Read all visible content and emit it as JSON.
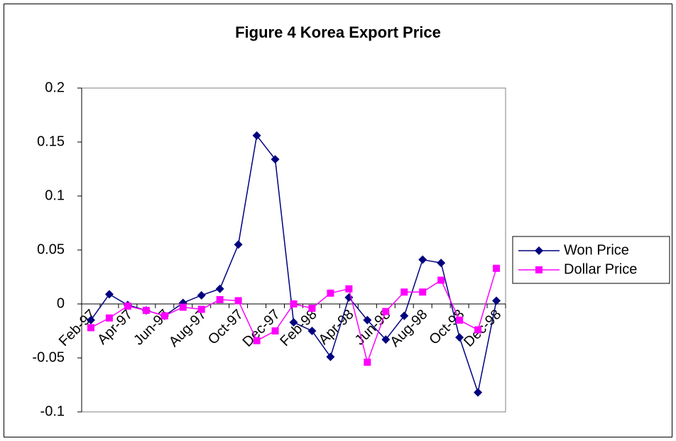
{
  "chart_data": {
    "type": "line",
    "title": "Figure 4 Korea Export Price",
    "categories": [
      "Feb-97",
      null,
      "Apr-97",
      null,
      "Jun-97",
      null,
      "Aug-97",
      null,
      "Oct-97",
      null,
      "Dec-97",
      null,
      "Feb-98",
      null,
      "Apr-98",
      null,
      "Jun-98",
      null,
      "Aug-98",
      null,
      "Oct-98",
      null,
      "Dec-98"
    ],
    "series": [
      {
        "name": "Won Price",
        "color": "#000080",
        "marker": "diamond",
        "values": [
          -0.015,
          0.009,
          -0.001,
          -0.006,
          -0.011,
          0.001,
          0.008,
          0.014,
          0.055,
          0.156,
          0.134,
          -0.017,
          -0.025,
          -0.049,
          0.006,
          -0.015,
          -0.033,
          -0.011,
          0.041,
          0.038,
          -0.031,
          -0.082,
          0.003
        ]
      },
      {
        "name": "Dollar Price",
        "color": "#ff00ff",
        "marker": "square",
        "values": [
          -0.022,
          -0.013,
          -0.002,
          -0.006,
          -0.011,
          -0.003,
          -0.005,
          0.004,
          0.003,
          -0.034,
          -0.025,
          0.0,
          -0.004,
          0.01,
          0.014,
          -0.054,
          -0.007,
          0.011,
          0.011,
          0.022,
          -0.015,
          -0.024,
          0.033
        ]
      }
    ],
    "ylim": [
      -0.1,
      0.2
    ],
    "yticks": [
      -0.1,
      -0.05,
      0,
      0.05,
      0.1,
      0.15,
      0.2
    ],
    "grid": false,
    "legend": "right"
  }
}
